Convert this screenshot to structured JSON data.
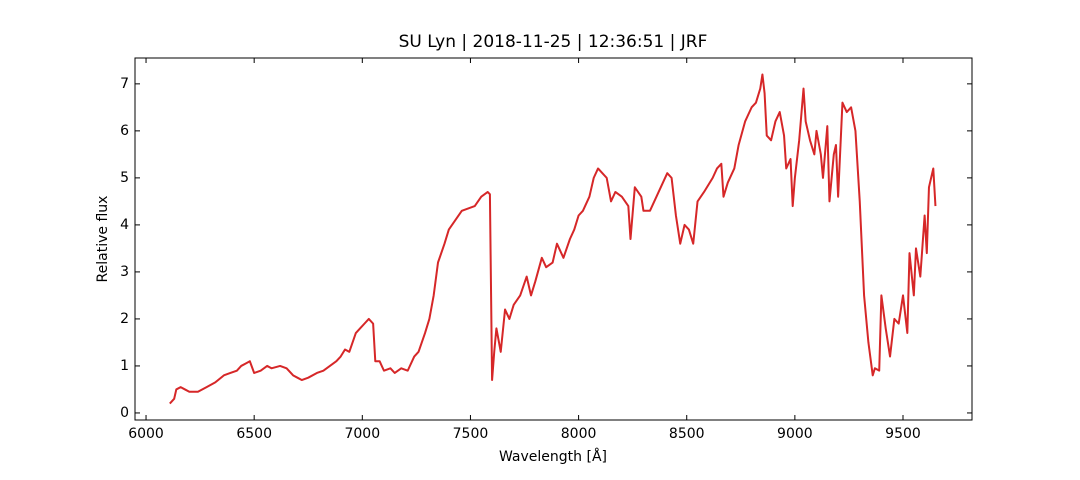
{
  "chart_data": {
    "type": "line",
    "title": "SU Lyn | 2018-11-25 | 12:36:51 | JRF",
    "x_label": "Wavelength [Å]",
    "y_label": "Relative flux",
    "xlim": [
      5949,
      9819
    ],
    "ylim": [
      -0.15,
      7.55
    ],
    "xticks": [
      6000,
      6500,
      7000,
      7500,
      8000,
      8500,
      9000,
      9500
    ],
    "yticks": [
      0,
      1,
      2,
      3,
      4,
      5,
      6,
      7
    ],
    "grid": false,
    "series": [
      {
        "color": "#d62728",
        "x": [
          6110,
          6130,
          6140,
          6160,
          6180,
          6200,
          6240,
          6280,
          6320,
          6360,
          6390,
          6420,
          6440,
          6460,
          6480,
          6500,
          6530,
          6560,
          6580,
          6620,
          6650,
          6680,
          6700,
          6720,
          6750,
          6790,
          6820,
          6850,
          6880,
          6900,
          6920,
          6940,
          6970,
          6990,
          7010,
          7030,
          7050,
          7060,
          7080,
          7100,
          7130,
          7150,
          7180,
          7210,
          7240,
          7260,
          7290,
          7310,
          7330,
          7350,
          7380,
          7400,
          7430,
          7460,
          7490,
          7520,
          7550,
          7580,
          7590,
          7600,
          7610,
          7620,
          7640,
          7660,
          7680,
          7700,
          7730,
          7760,
          7780,
          7800,
          7830,
          7850,
          7880,
          7900,
          7930,
          7960,
          7980,
          8000,
          8020,
          8050,
          8070,
          8090,
          8110,
          8130,
          8150,
          8170,
          8200,
          8230,
          8240,
          8260,
          8290,
          8300,
          8330,
          8360,
          8390,
          8410,
          8430,
          8450,
          8470,
          8490,
          8510,
          8530,
          8550,
          8580,
          8620,
          8640,
          8660,
          8670,
          8690,
          8720,
          8740,
          8770,
          8800,
          8820,
          8840,
          8850,
          8860,
          8870,
          8890,
          8910,
          8930,
          8950,
          8960,
          8980,
          8990,
          9000,
          9020,
          9040,
          9050,
          9070,
          9090,
          9100,
          9120,
          9130,
          9150,
          9160,
          9180,
          9190,
          9200,
          9220,
          9240,
          9260,
          9280,
          9300,
          9320,
          9340,
          9360,
          9370,
          9390,
          9400,
          9420,
          9440,
          9460,
          9480,
          9500,
          9520,
          9530,
          9550,
          9560,
          9580,
          9600,
          9610,
          9620,
          9640,
          9650
        ],
        "values": [
          0.2,
          0.3,
          0.5,
          0.55,
          0.5,
          0.45,
          0.45,
          0.55,
          0.65,
          0.8,
          0.85,
          0.9,
          1.0,
          1.05,
          1.1,
          0.85,
          0.9,
          1.0,
          0.95,
          1.0,
          0.95,
          0.8,
          0.75,
          0.7,
          0.75,
          0.85,
          0.9,
          1.0,
          1.1,
          1.2,
          1.35,
          1.3,
          1.7,
          1.8,
          1.9,
          2.0,
          1.9,
          1.1,
          1.1,
          0.9,
          0.95,
          0.85,
          0.95,
          0.9,
          1.2,
          1.3,
          1.7,
          2.0,
          2.5,
          3.2,
          3.6,
          3.9,
          4.1,
          4.3,
          4.35,
          4.4,
          4.6,
          4.7,
          4.65,
          0.7,
          1.3,
          1.8,
          1.3,
          2.2,
          2.0,
          2.3,
          2.5,
          2.9,
          2.5,
          2.8,
          3.3,
          3.1,
          3.2,
          3.6,
          3.3,
          3.7,
          3.9,
          4.2,
          4.3,
          4.6,
          5.0,
          5.2,
          5.1,
          5.0,
          4.5,
          4.7,
          4.6,
          4.4,
          3.7,
          4.8,
          4.6,
          4.3,
          4.3,
          4.6,
          4.9,
          5.1,
          5.0,
          4.2,
          3.6,
          4.0,
          3.9,
          3.6,
          4.5,
          4.7,
          5.0,
          5.2,
          5.3,
          4.6,
          4.9,
          5.2,
          5.7,
          6.2,
          6.5,
          6.6,
          6.9,
          7.2,
          6.8,
          5.9,
          5.8,
          6.2,
          6.4,
          5.9,
          5.2,
          5.4,
          4.4,
          5.0,
          5.8,
          6.9,
          6.2,
          5.8,
          5.5,
          6.0,
          5.5,
          5.0,
          6.1,
          4.5,
          5.5,
          5.7,
          4.6,
          6.6,
          6.4,
          6.5,
          6.0,
          4.5,
          2.5,
          1.5,
          0.8,
          0.95,
          0.9,
          2.5,
          1.8,
          1.2,
          2.0,
          1.9,
          2.5,
          1.7,
          3.4,
          2.5,
          3.5,
          2.9,
          4.2,
          3.4,
          4.8,
          5.2,
          4.4
        ]
      }
    ]
  }
}
